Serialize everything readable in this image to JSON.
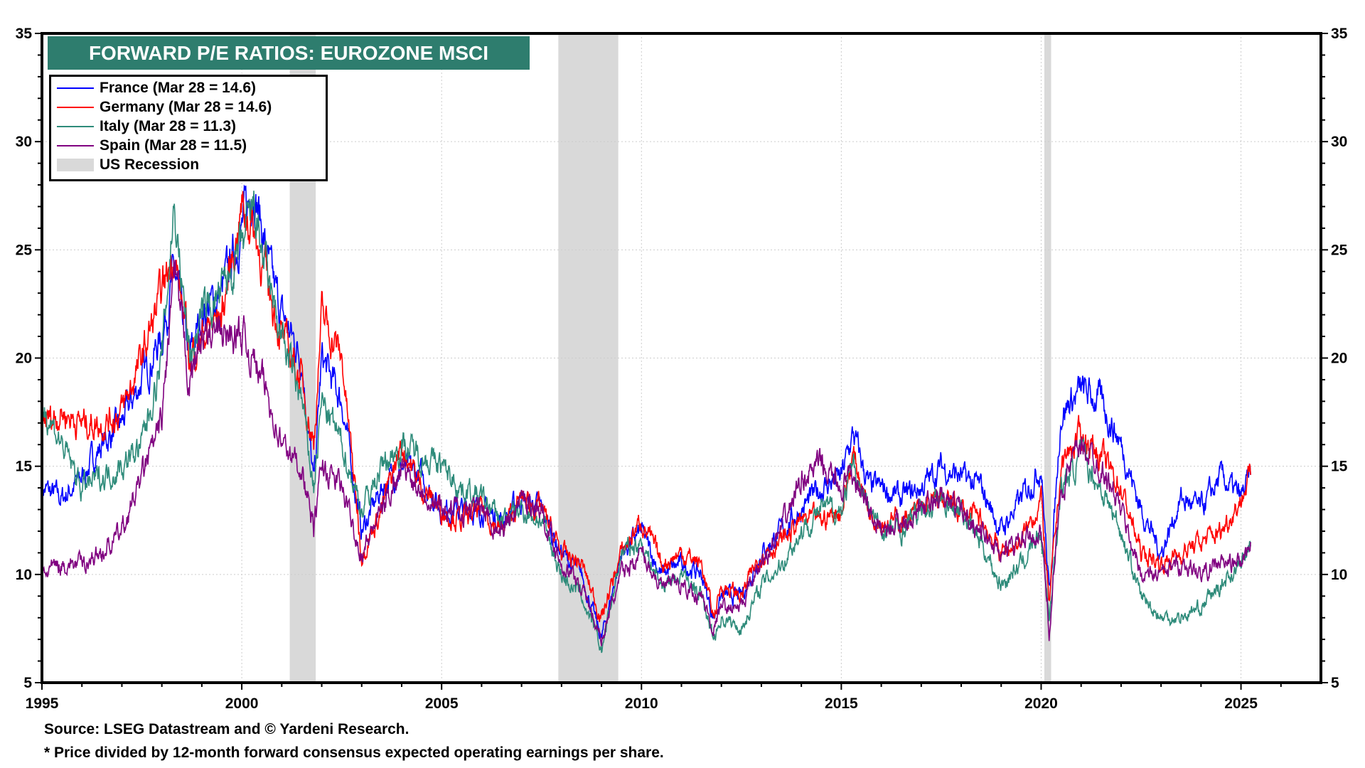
{
  "chart_data": {
    "type": "line",
    "title": "FORWARD P/E RATIOS: EUROZONE MSCI",
    "xlabel": "",
    "ylabel": "",
    "xlim": [
      1995,
      2027
    ],
    "ylim": [
      5,
      35
    ],
    "x_ticks": [
      "1995",
      "2000",
      "2005",
      "2010",
      "2015",
      "2020",
      "2025"
    ],
    "y_ticks": [
      "5",
      "10",
      "15",
      "20",
      "25",
      "30",
      "35"
    ],
    "grid": true,
    "legend_position": "top-left",
    "recessions": [
      [
        2001.2,
        2001.85
      ],
      [
        2007.92,
        2009.42
      ],
      [
        2020.08,
        2020.25
      ]
    ],
    "recession_label": "US Recession",
    "x": [
      1995,
      1995.5,
      1996,
      1996.5,
      1997,
      1997.5,
      1998,
      1998.3,
      1998.7,
      1999,
      1999.5,
      2000,
      2000.3,
      2000.7,
      2001,
      2001.5,
      2001.8,
      2002,
      2002.5,
      2003,
      2003.5,
      2004,
      2004.5,
      2005,
      2005.5,
      2006,
      2006.5,
      2007,
      2007.5,
      2008,
      2008.5,
      2009,
      2009.5,
      2010,
      2010.5,
      2011,
      2011.5,
      2011.8,
      2012,
      2012.5,
      2013,
      2013.5,
      2014,
      2014.5,
      2015,
      2015.3,
      2015.7,
      2016,
      2016.5,
      2017,
      2017.5,
      2018,
      2018.5,
      2019,
      2019.5,
      2020,
      2020.2,
      2020.5,
      2021,
      2021.5,
      2022,
      2022.5,
      2023,
      2023.5,
      2024,
      2024.5,
      2025,
      2025.24
    ],
    "series": [
      {
        "name": "France (Mar 28 = 14.6)",
        "color": "#0000ff",
        "values": [
          14,
          13.5,
          14.5,
          16,
          17,
          19,
          21,
          24,
          20,
          22,
          23,
          26,
          28,
          24,
          22,
          20,
          14,
          20,
          18,
          12,
          14,
          15,
          14.5,
          13,
          13,
          13,
          12.5,
          13.5,
          13,
          11,
          10,
          7,
          11,
          12,
          10,
          10.5,
          10,
          8,
          9,
          9,
          11,
          12,
          13,
          14,
          14.5,
          16.5,
          14,
          14,
          13.5,
          14,
          15,
          14.5,
          14,
          12,
          13.5,
          15,
          9,
          17.5,
          18.5,
          18,
          16,
          13,
          11,
          13.5,
          13,
          14.5,
          13.5,
          14.6
        ]
      },
      {
        "name": "Germany (Mar 28 = 14.6)",
        "color": "#ff0000",
        "values": [
          17,
          17.5,
          17,
          17,
          17.5,
          20,
          23,
          25,
          20,
          21,
          22,
          27,
          26,
          23,
          21,
          19,
          16,
          22,
          20,
          11,
          13,
          16,
          14,
          13,
          12.5,
          13,
          12,
          13.5,
          13,
          11,
          10.5,
          8,
          11,
          12.5,
          10.5,
          11,
          10.5,
          8,
          9.5,
          9,
          11,
          11.5,
          12.5,
          12.5,
          13,
          15.5,
          13,
          12.5,
          12.5,
          13,
          13.5,
          13,
          12.5,
          11,
          11.5,
          13.5,
          8.5,
          15,
          16.5,
          15.5,
          14,
          11,
          10.5,
          11,
          11.5,
          12,
          13.5,
          14.6
        ]
      },
      {
        "name": "Italy (Mar 28 = 11.3)",
        "color": "#2e8b7a",
        "values": [
          18,
          16,
          14,
          14.5,
          15,
          16,
          20,
          27,
          20,
          22,
          23,
          25,
          27,
          23,
          21,
          18,
          14,
          18,
          16,
          13,
          15,
          16,
          15.5,
          15,
          14,
          13.5,
          12.5,
          13,
          12.5,
          10,
          9,
          6.5,
          11,
          11.5,
          9.5,
          10,
          9,
          7,
          8,
          7.5,
          9.5,
          10.5,
          12,
          13,
          13,
          15,
          13,
          12,
          12,
          13,
          13.5,
          13,
          11.5,
          9.5,
          10.5,
          12,
          8,
          14,
          15.5,
          14,
          12,
          9,
          8,
          8,
          8.5,
          9.5,
          10.5,
          11.3
        ]
      },
      {
        "name": "Spain (Mar 28 = 11.5)",
        "color": "#800080",
        "values": [
          10,
          10.5,
          10.5,
          11,
          12,
          14.5,
          17,
          24,
          19,
          21,
          21,
          21,
          20,
          18,
          16,
          15,
          12,
          15,
          14,
          11,
          13,
          15,
          14,
          13,
          13,
          13,
          12,
          13.5,
          13,
          10.5,
          9.5,
          7,
          10,
          11,
          9.5,
          9.5,
          9,
          7.5,
          8.5,
          8.5,
          10.5,
          12,
          14.5,
          15,
          14,
          14.5,
          13,
          12,
          12.5,
          13,
          13.5,
          13,
          12,
          11,
          11.5,
          12,
          7.5,
          14,
          16,
          15,
          13,
          10,
          10,
          10.5,
          10,
          10.5,
          10.5,
          11.5
        ]
      }
    ]
  },
  "footer": {
    "source": "Source: LSEG Datastream and © Yardeni Research.",
    "note": "* Price divided by 12-month forward consensus expected operating earnings per share."
  }
}
